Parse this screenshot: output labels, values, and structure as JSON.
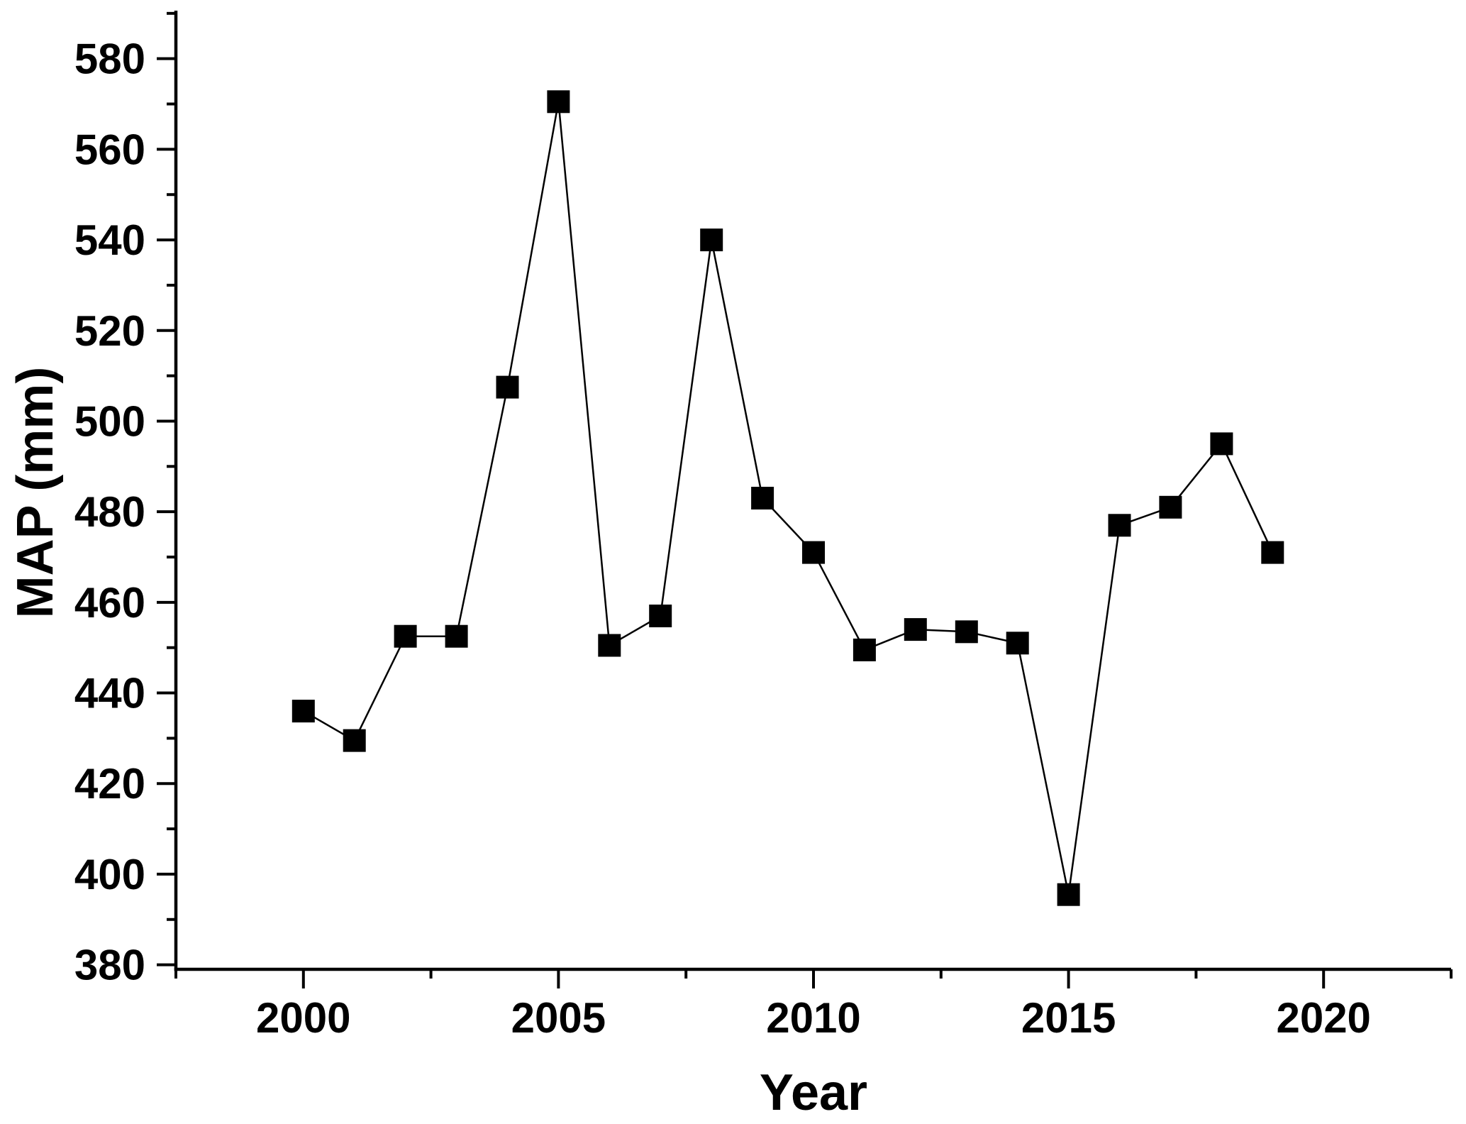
{
  "chart_data": {
    "type": "line",
    "title": "",
    "xlabel": "Year",
    "ylabel": "MAP (mm)",
    "x": [
      2000,
      2001,
      2002,
      2003,
      2004,
      2005,
      2006,
      2007,
      2008,
      2009,
      2010,
      2011,
      2012,
      2013,
      2014,
      2015,
      2016,
      2017,
      2018,
      2019
    ],
    "series": [
      {
        "name": "MAP",
        "values": [
          436,
          429.5,
          452.5,
          452.5,
          507.5,
          570.5,
          450.5,
          457,
          540,
          483,
          471,
          449.5,
          454,
          453.5,
          451,
          395.5,
          477,
          481,
          495,
          471
        ]
      }
    ],
    "xlim": [
      1997.5,
      2022.5
    ],
    "ylim": [
      379,
      590.6
    ],
    "x_major_ticks": [
      2000,
      2005,
      2010,
      2015,
      2020
    ],
    "x_minor_ticks": [
      1997.5,
      2002.5,
      2007.5,
      2012.5,
      2017.5,
      2022.5
    ],
    "y_major_ticks": [
      380,
      400,
      420,
      440,
      460,
      480,
      500,
      520,
      540,
      560,
      580
    ],
    "y_minor_ticks": [
      390,
      410,
      430,
      450,
      470,
      490,
      510,
      530,
      550,
      570,
      590
    ],
    "grid": false,
    "legend": "none",
    "marker": "filled-square",
    "line_color": "#000000",
    "marker_color": "#000000",
    "axis_color": "#000000",
    "background_color": "#ffffff"
  }
}
